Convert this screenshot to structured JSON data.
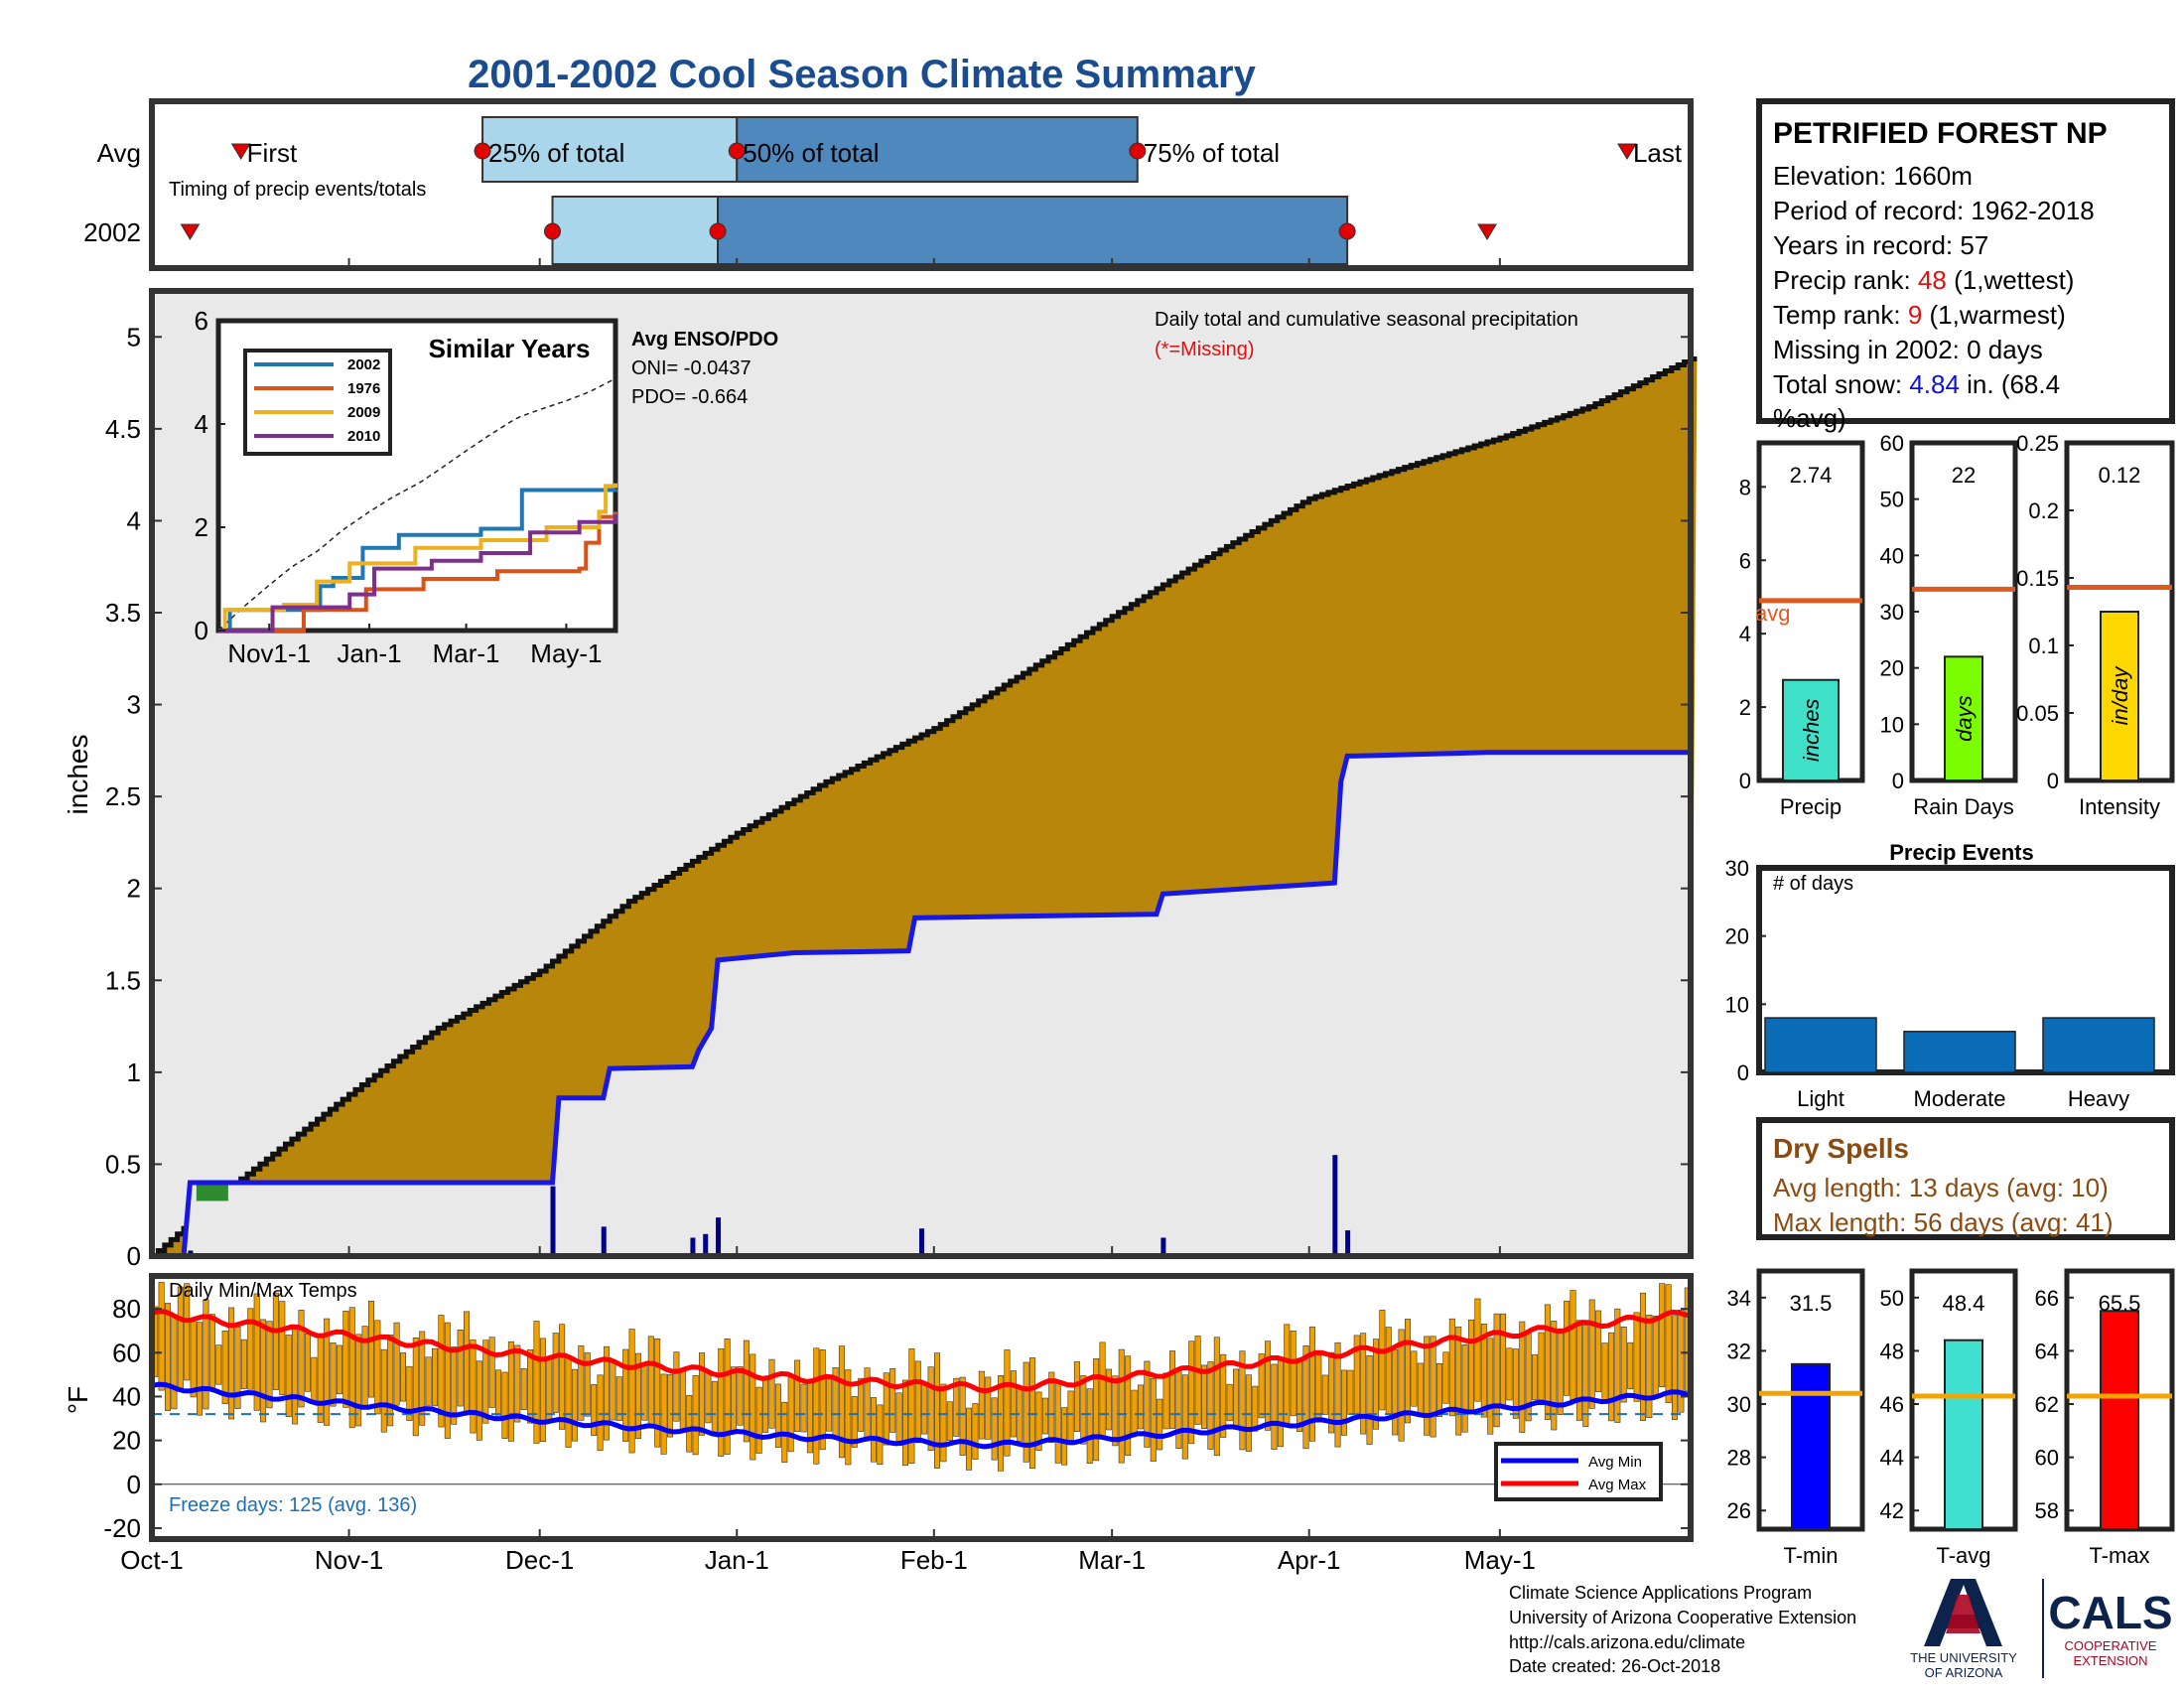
{
  "title": "2001-2002 Cool Season Climate Summary",
  "colors": {
    "title": "#1a4d8f",
    "frame": "#333333",
    "avg_box_light": "#a9d6ea",
    "avg_box_dark": "#4f88bd",
    "cum_fill": "#b8860b",
    "cum_bg": "#e9e9e9",
    "avg_line": "#1717e6",
    "daily_bar": "#00008b",
    "temp_bar": "#f0a000",
    "avg_min": "#0000ff",
    "avg_max": "#ff0000",
    "freeze_line": "#1f6fb5",
    "orange_line": "#e05a20",
    "yellow_line": "#f4a400",
    "missing_red": "#e01010",
    "snow_blue": "#1010d0",
    "dry_spell": "#8b4a10",
    "events_bar": "#0b6cb8",
    "precip_bar": "#40e0c8",
    "rain_days_bar": "#7cfc00",
    "intensity_bar": "#ffd700",
    "tmin_bar": "#0000ff",
    "tavg_bar": "#40e0d0",
    "tmax_bar": "#ff0000"
  },
  "timing": {
    "rows": [
      "Avg",
      "2002"
    ],
    "caption": "Timing of precip events/totals",
    "avg_labels": {
      "first": "First",
      "q25": "25% of total",
      "q50": "50% of total",
      "q75": "75% of total",
      "last": "Last"
    },
    "avg_marks": {
      "first": "Oct-15",
      "q25": "Nov-22",
      "q50": "Jan-1",
      "q75": "Mar-5",
      "last": "May-21"
    },
    "year_marks": {
      "first": "Oct-7",
      "q25": "Dec-3",
      "q50": "Dec-29",
      "q75": "Apr-7",
      "last": "Apr-29"
    }
  },
  "main_chart": {
    "ylabel": "inches",
    "y_ticks": [
      "0",
      "0.5",
      "1",
      "1.5",
      "2",
      "2.5",
      "3",
      "3.5",
      "4",
      "4.5",
      "5"
    ],
    "ylim": [
      0,
      5.25
    ],
    "note": "Daily total and cumulative seasonal precipitation",
    "missing_note": "(*=Missing)",
    "enso_title": "Avg ENSO/PDO",
    "oni": "ONI= -0.0437",
    "pdo": "PDO= -0.664"
  },
  "inset": {
    "title": "Similar Years",
    "y_ticks": [
      "0",
      "2",
      "4",
      "6"
    ],
    "x_ticks": [
      "Nov1-1",
      "Jan-1",
      "Mar-1",
      "May-1"
    ],
    "legend": [
      "2002",
      "1976",
      "2009",
      "2010"
    ],
    "series_colors": [
      "#1f77b4",
      "#d95319",
      "#edb120",
      "#7e2f8e"
    ]
  },
  "temps": {
    "label": "Daily Min/Max Temps",
    "ylabel": "°F",
    "y_ticks": [
      "80",
      "60",
      "40",
      "20",
      "0",
      "-20"
    ],
    "ylim": [
      -25,
      95
    ],
    "freeze_text": "Freeze days: 125 (avg. 136)",
    "legend": [
      "Avg Min",
      "Avg Max"
    ]
  },
  "x_axis": {
    "ticks": [
      "Oct-1",
      "Nov-1",
      "Dec-1",
      "Jan-1",
      "Feb-1",
      "Mar-1",
      "Apr-1",
      "May-1"
    ]
  },
  "station": {
    "name": "PETRIFIED FOREST NP",
    "elevation": "Elevation: 1660m",
    "period": "Period of record: 1962-2018",
    "years": "Years in record: 57",
    "precip_rank_prefix": "Precip rank: ",
    "precip_rank_value": "48",
    "precip_rank_suffix": " (1,wettest)",
    "temp_rank_prefix": "Temp rank: ",
    "temp_rank_value": "9",
    "temp_rank_suffix": " (1,warmest)",
    "missing": "Missing in 2002: 0 days",
    "snow_prefix": "Total snow: ",
    "snow_value": "4.84",
    "snow_suffix": " in. (68.4",
    "snow_suffix2": "%avg)"
  },
  "summary_bars": {
    "precip": {
      "value_label": "2.74",
      "bar_text": "inches",
      "xlabel": "Precip",
      "ticks": [
        "0",
        "2",
        "4",
        "6",
        "8"
      ],
      "avg_label": "avg",
      "value": 2.74,
      "avg": 4.9,
      "ylim": [
        0,
        9.2
      ]
    },
    "rain_days": {
      "value_label": "22",
      "bar_text": "days",
      "xlabel": "Rain Days",
      "ticks": [
        "0",
        "10",
        "20",
        "30",
        "40",
        "50",
        "60"
      ],
      "value": 22,
      "avg": 34,
      "ylim": [
        0,
        60
      ]
    },
    "intensity": {
      "value_label": "0.12",
      "bar_text": "in/day",
      "xlabel": "Intensity",
      "ticks": [
        "0",
        "0.05",
        "0.1",
        "0.15",
        "0.2",
        "0.25"
      ],
      "value": 0.125,
      "avg": 0.143,
      "ylim": [
        0,
        0.25
      ]
    }
  },
  "events": {
    "title": "Precip Events",
    "subtitle": "# of days",
    "categories": [
      "Light",
      "Moderate",
      "Heavy"
    ],
    "values": [
      8,
      6,
      8
    ],
    "ticks": [
      "0",
      "10",
      "20",
      "30"
    ],
    "ylim": [
      0,
      30
    ]
  },
  "dry_spells": {
    "title": "Dry Spells",
    "avg_line": "Avg length: 13 days (avg: 10)",
    "max_line": "Max length: 56 days (avg: 41)"
  },
  "temp_bars": {
    "tmin": {
      "value_label": "31.5",
      "xlabel": "T-min",
      "ticks": [
        "26",
        "28",
        "30",
        "32",
        "34"
      ],
      "value": 31.5,
      "avg": 30.4,
      "ylim": [
        25.3,
        35
      ]
    },
    "tavg": {
      "value_label": "48.4",
      "xlabel": "T-avg",
      "ticks": [
        "42",
        "44",
        "46",
        "48",
        "50"
      ],
      "value": 48.4,
      "avg": 46.3,
      "ylim": [
        41.3,
        51
      ]
    },
    "tmax": {
      "value_label": "65.5",
      "xlabel": "T-max",
      "ticks": [
        "58",
        "60",
        "62",
        "64",
        "66"
      ],
      "value": 65.5,
      "avg": 62.3,
      "ylim": [
        57.3,
        67
      ]
    }
  },
  "chart_data": {
    "type": "area",
    "title": "2001-2002 Cool Season Climate Summary",
    "xlabel": "",
    "ylabel": "inches",
    "x_ticks": [
      "Oct-1",
      "Nov-1",
      "Dec-1",
      "Jan-1",
      "Feb-1",
      "Mar-1",
      "Apr-1",
      "May-1"
    ],
    "ylim": [
      0,
      5.25
    ],
    "series": [
      {
        "name": "cumulative average",
        "x": [
          "Oct-1",
          "Oct-15",
          "Nov-1",
          "Nov-15",
          "Dec-1",
          "Dec-15",
          "Jan-1",
          "Jan-15",
          "Feb-1",
          "Feb-15",
          "Mar-1",
          "Mar-15",
          "Apr-1",
          "Apr-15",
          "May-1",
          "May-15",
          "May-31"
        ],
        "values": [
          0,
          0.42,
          0.88,
          1.24,
          1.55,
          1.93,
          2.3,
          2.58,
          2.87,
          3.17,
          3.48,
          3.78,
          4.12,
          4.28,
          4.45,
          4.62,
          4.88
        ]
      },
      {
        "name": "2002",
        "x": [
          "Oct-1",
          "Oct-6",
          "Oct-7",
          "Dec-3",
          "Dec-4",
          "Dec-11",
          "Dec-12",
          "Dec-25",
          "Dec-26",
          "Dec-28",
          "Dec-29",
          "Jan-10",
          "Jan-28",
          "Jan-29",
          "Mar-8",
          "Mar-9",
          "Apr-5",
          "Apr-6",
          "Apr-7",
          "Apr-8",
          "Apr-29",
          "May-31"
        ],
        "values": [
          0,
          0,
          0.4,
          0.4,
          0.86,
          0.86,
          1.02,
          1.03,
          1.12,
          1.24,
          1.61,
          1.65,
          1.66,
          1.84,
          1.86,
          1.97,
          2.03,
          2.58,
          2.72,
          2.72,
          2.74,
          2.74
        ]
      },
      {
        "name": "daily precipitation",
        "x": [
          "Oct-7",
          "Dec-3",
          "Dec-11",
          "Dec-25",
          "Dec-27",
          "Dec-29",
          "Jan-30",
          "Mar-9",
          "Apr-5",
          "Apr-7"
        ],
        "values": [
          0.03,
          0.38,
          0.16,
          0.1,
          0.12,
          0.21,
          0.15,
          0.1,
          0.55,
          0.14
        ]
      }
    ]
  }
}
